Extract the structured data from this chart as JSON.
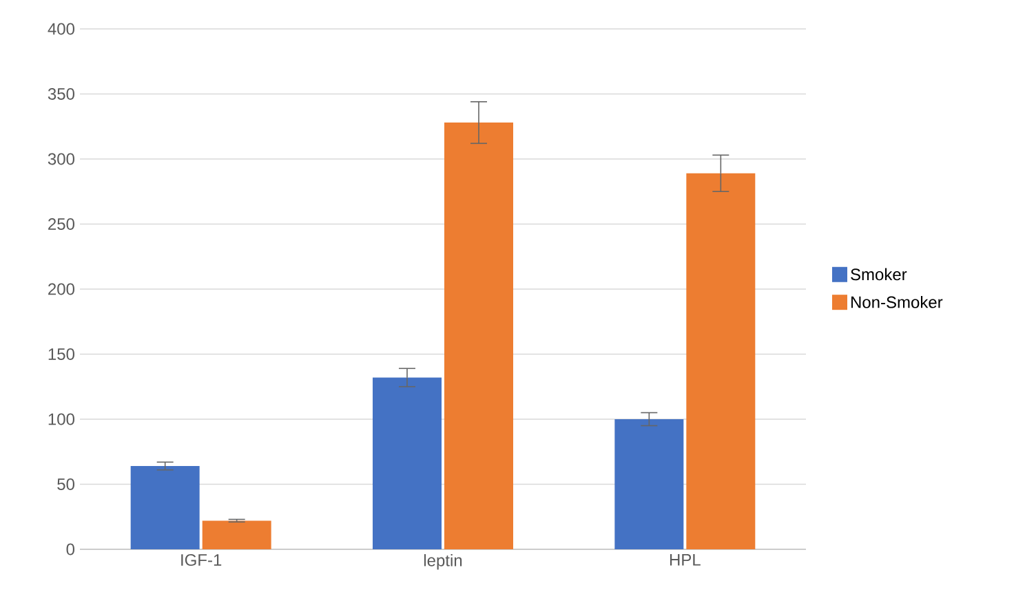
{
  "chart_data": {
    "type": "bar",
    "categories": [
      "IGF-1",
      "leptin",
      "HPL"
    ],
    "series": [
      {
        "name": "Smoker",
        "color": "#4472c4",
        "values": [
          64,
          132,
          100
        ],
        "errors": [
          3,
          7,
          5
        ]
      },
      {
        "name": "Non-Smoker",
        "color": "#ed7d31",
        "values": [
          22,
          328,
          289
        ],
        "errors": [
          1,
          16,
          14
        ]
      }
    ],
    "ylim": [
      0,
      400
    ],
    "yticks": [
      0,
      50,
      100,
      150,
      200,
      250,
      300,
      350,
      400
    ],
    "grid": "y",
    "legend": "right"
  }
}
